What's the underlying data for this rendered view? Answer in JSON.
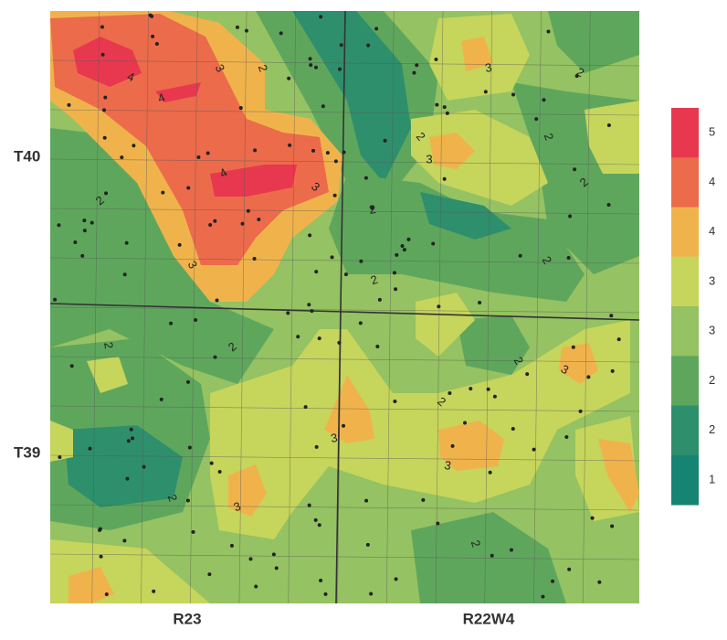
{
  "map": {
    "township_labels": [
      "T40",
      "T39"
    ],
    "range_labels": [
      "R23",
      "R22W4"
    ],
    "legend": [
      {
        "label": "5",
        "color": "#e8384f"
      },
      {
        "label": "4",
        "color": "#ec6b4b"
      },
      {
        "label": "4",
        "color": "#f0b34c"
      },
      {
        "label": "3",
        "color": "#c6d55c"
      },
      {
        "label": "3",
        "color": "#95c262"
      },
      {
        "label": "2",
        "color": "#5fa65d"
      },
      {
        "label": "2",
        "color": "#2e8f6c"
      },
      {
        "label": "1",
        "color": "#158472"
      }
    ],
    "contour_labels": [
      "4",
      "4",
      "3",
      "2",
      "4",
      "3",
      "3",
      "2",
      "2",
      "3",
      "3",
      "2",
      "2",
      "2",
      "2",
      "2",
      "2",
      "2",
      "2",
      "2",
      "3",
      "2",
      "3",
      "3",
      "2",
      "3",
      "2"
    ]
  }
}
